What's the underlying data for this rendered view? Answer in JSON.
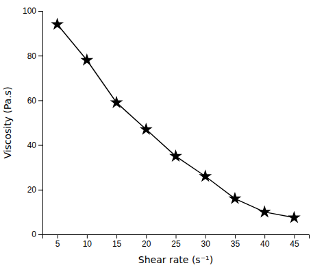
{
  "chart_data": {
    "type": "line",
    "xlabel": "Shear rate (s⁻¹)",
    "ylabel": "Viscosity (Pa.s)",
    "x": [
      5,
      10,
      15,
      20,
      25,
      30,
      35,
      40,
      45
    ],
    "values": [
      94,
      78,
      59,
      47,
      35,
      26,
      16,
      10,
      7.5
    ],
    "xlim": [
      2.5,
      47.5
    ],
    "ylim": [
      0,
      100
    ],
    "xticks": [
      5,
      10,
      15,
      20,
      25,
      30,
      35,
      40,
      45
    ],
    "yticks": [
      0,
      20,
      40,
      60,
      80,
      100
    ],
    "color": "#000000",
    "marker": "star",
    "grid": false
  }
}
